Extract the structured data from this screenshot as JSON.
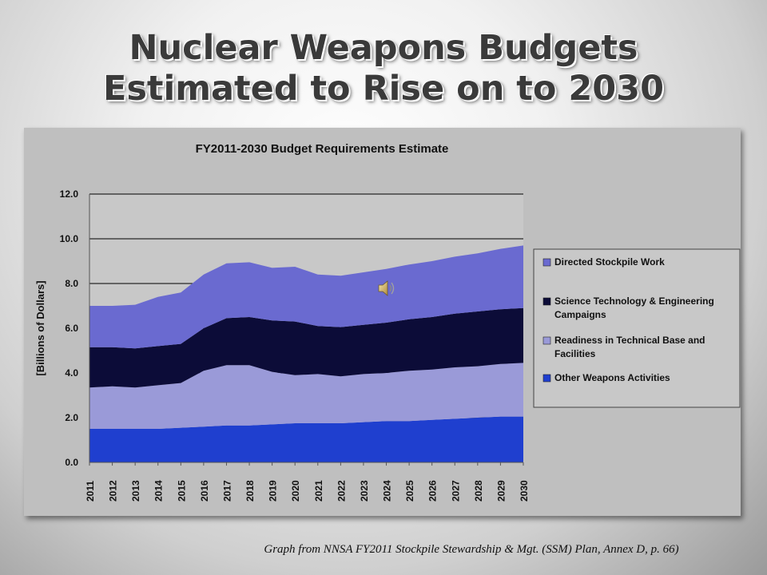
{
  "slide": {
    "title_line1": "Nuclear Weapons Budgets",
    "title_line2": "Estimated to Rise on to 2030",
    "caption": "Graph from NNSA FY2011 Stockpile Stewardship & Mgt. (SSM) Plan, Annex D, p. 66)",
    "audio_icon": "speaker-icon"
  },
  "chart_data": {
    "type": "area",
    "stacked": true,
    "title": "FY2011-2030 Budget Requirements Estimate",
    "xlabel": "",
    "ylabel": "[Billions of Dollars]",
    "ylim": [
      0,
      12
    ],
    "yticks": [
      "0.0",
      "2.0",
      "4.0",
      "6.0",
      "8.0",
      "10.0",
      "12.0"
    ],
    "grid": true,
    "legend_position": "right",
    "categories": [
      "2011",
      "2012",
      "2013",
      "2014",
      "2015",
      "2016",
      "2017",
      "2018",
      "2019",
      "2020",
      "2021",
      "2022",
      "2023",
      "2024",
      "2025",
      "2026",
      "2027",
      "2028",
      "2029",
      "2030"
    ],
    "series": [
      {
        "name": "Other Weapons Activities",
        "color": "#1f3fcf",
        "values": [
          1.5,
          1.5,
          1.5,
          1.5,
          1.55,
          1.6,
          1.65,
          1.65,
          1.7,
          1.75,
          1.75,
          1.75,
          1.8,
          1.85,
          1.85,
          1.9,
          1.95,
          2.0,
          2.05,
          2.05
        ]
      },
      {
        "name": "Readiness in Technical Base and Facilities",
        "color": "#9a9ad8",
        "values": [
          1.85,
          1.9,
          1.85,
          1.95,
          2.0,
          2.5,
          2.7,
          2.7,
          2.35,
          2.15,
          2.2,
          2.1,
          2.15,
          2.15,
          2.25,
          2.25,
          2.3,
          2.3,
          2.35,
          2.4
        ]
      },
      {
        "name": "Science Technology & Engineering Campaigns",
        "color": "#0c0c38",
        "values": [
          1.8,
          1.75,
          1.75,
          1.75,
          1.75,
          1.9,
          2.1,
          2.15,
          2.3,
          2.4,
          2.15,
          2.2,
          2.2,
          2.25,
          2.3,
          2.35,
          2.4,
          2.45,
          2.45,
          2.45
        ]
      },
      {
        "name": "Directed Stockpile Work",
        "color": "#6a6ad0",
        "values": [
          1.85,
          1.85,
          1.95,
          2.2,
          2.3,
          2.4,
          2.45,
          2.45,
          2.35,
          2.45,
          2.3,
          2.3,
          2.35,
          2.4,
          2.45,
          2.5,
          2.55,
          2.6,
          2.7,
          2.8
        ]
      }
    ],
    "legend_order": [
      "Directed Stockpile Work",
      "Science Technology & Engineering Campaigns",
      "Readiness in Technical Base and Facilities",
      "Other Weapons Activities"
    ]
  }
}
